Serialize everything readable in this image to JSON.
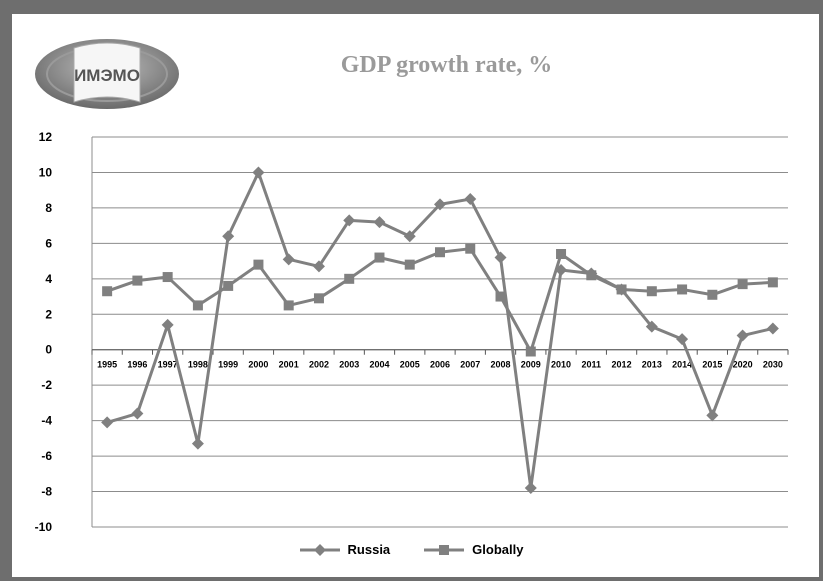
{
  "header": {
    "logo_text": "ИМЭМО"
  },
  "colors": {
    "frame": "#6e6e6e",
    "series": "#808080",
    "title": "#9a9a9a"
  },
  "chart_data": {
    "type": "line",
    "title": "GDP growth rate, %",
    "categories": [
      "1995",
      "1996",
      "1997",
      "1998",
      "1999",
      "2000",
      "2001",
      "2002",
      "2003",
      "2004",
      "2005",
      "2006",
      "2007",
      "2008",
      "2009",
      "2010",
      "2011",
      "2012",
      "2013",
      "2014",
      "2015",
      "2020",
      "2030"
    ],
    "series": [
      {
        "name": "Russia",
        "marker": "diamond",
        "values": [
          -4.1,
          -3.6,
          1.4,
          -5.3,
          6.4,
          10.0,
          5.1,
          4.7,
          7.3,
          7.2,
          6.4,
          8.2,
          8.5,
          5.2,
          -7.8,
          4.5,
          4.3,
          3.4,
          1.3,
          0.6,
          -3.7,
          0.8,
          1.2
        ]
      },
      {
        "name": "Globally",
        "marker": "square",
        "values": [
          3.3,
          3.9,
          4.1,
          2.5,
          3.6,
          4.8,
          2.5,
          2.9,
          4.0,
          5.2,
          4.8,
          5.5,
          5.7,
          3.0,
          -0.1,
          5.4,
          4.2,
          3.4,
          3.3,
          3.4,
          3.1,
          3.7,
          3.8
        ]
      }
    ],
    "ylim": [
      -10,
      12
    ],
    "yticks": [
      -10,
      -8,
      -6,
      -4,
      -2,
      0,
      2,
      4,
      6,
      8,
      10,
      12
    ],
    "grid": true,
    "legend": "bottom"
  }
}
